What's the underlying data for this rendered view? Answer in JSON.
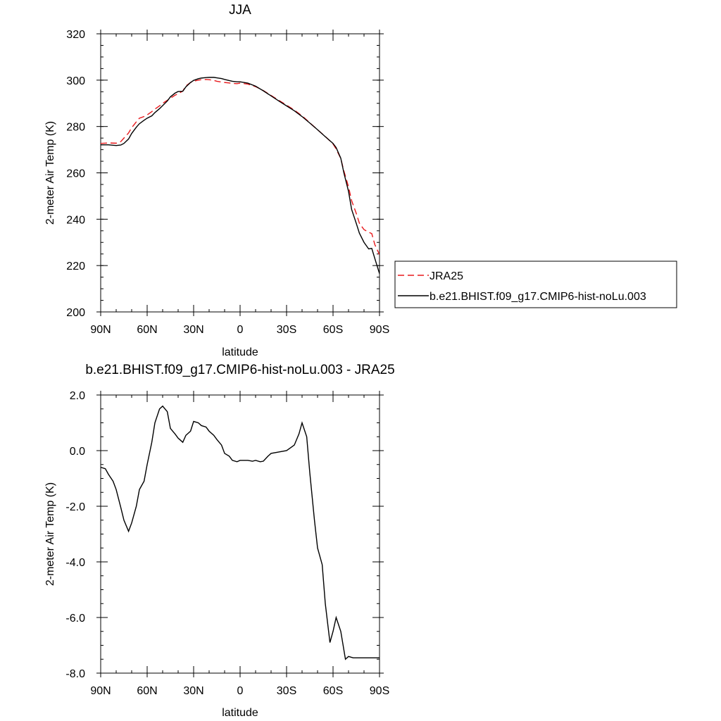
{
  "chart_data": [
    {
      "type": "line",
      "title": "JJA",
      "xlabel": "latitude",
      "ylabel": "2-meter Air Temp (K)",
      "xlim": [
        90,
        -90
      ],
      "ylim": [
        200,
        320
      ],
      "x_ticks": [
        {
          "value": 90,
          "label": "90N"
        },
        {
          "value": 60,
          "label": "60N"
        },
        {
          "value": 30,
          "label": "30N"
        },
        {
          "value": 0,
          "label": "0"
        },
        {
          "value": -30,
          "label": "30S"
        },
        {
          "value": -60,
          "label": "60S"
        },
        {
          "value": -90,
          "label": "90S"
        }
      ],
      "y_ticks": [
        {
          "value": 200,
          "label": "200"
        },
        {
          "value": 220,
          "label": "220"
        },
        {
          "value": 240,
          "label": "240"
        },
        {
          "value": 260,
          "label": "260"
        },
        {
          "value": 280,
          "label": "280"
        },
        {
          "value": 300,
          "label": "300"
        },
        {
          "value": 320,
          "label": "320"
        }
      ],
      "legend": {
        "placement": "right",
        "entries": [
          {
            "label": "JRA25",
            "color": "#e8191c",
            "dash": "dashed"
          },
          {
            "label": "b.e21.BHIST.f09_g17.CMIP6-hist-noLu.003",
            "color": "#000000",
            "dash": "solid"
          }
        ]
      },
      "series": [
        {
          "name": "JRA25",
          "color": "#e8191c",
          "dash": "dashed",
          "x": [
            90,
            85,
            80,
            77,
            75,
            72,
            70,
            67,
            65,
            62,
            60,
            57,
            55,
            52,
            50,
            47,
            45,
            42,
            40,
            37,
            35,
            32,
            30,
            27,
            25,
            22,
            20,
            17,
            15,
            12,
            10,
            7,
            5,
            2,
            0,
            -5,
            -10,
            -15,
            -20,
            -25,
            -30,
            -35,
            -40,
            -45,
            -50,
            -55,
            -60,
            -62,
            -65,
            -67,
            -70,
            -72,
            -75,
            -77,
            -80,
            -83,
            -85,
            -87,
            -90
          ],
          "y": [
            272.7,
            272.9,
            272.8,
            273.5,
            275,
            277.2,
            279.5,
            282,
            283.6,
            284.3,
            285,
            286.4,
            287.5,
            288.9,
            290,
            291.3,
            292.2,
            293.5,
            294.1,
            295.3,
            297.5,
            299,
            299.5,
            300,
            300.2,
            300.3,
            300.2,
            299.9,
            299.5,
            299.2,
            299,
            298.8,
            298.6,
            298.5,
            298.7,
            298.3,
            297.2,
            295.5,
            293.4,
            291.3,
            289.2,
            287.1,
            284.6,
            281.6,
            278.6,
            275.7,
            272.5,
            270.3,
            266.2,
            260.8,
            254,
            248,
            242.5,
            238.3,
            235.5,
            234.4,
            233.8,
            229,
            224.7
          ]
        },
        {
          "name": "b.e21.BHIST.f09_g17.CMIP6-hist-noLu.003",
          "color": "#000000",
          "dash": "solid",
          "x": [
            90,
            85,
            80,
            77,
            75,
            72,
            70,
            67,
            65,
            62,
            60,
            57,
            55,
            52,
            50,
            47,
            45,
            42,
            40,
            37,
            35,
            32,
            30,
            27,
            25,
            22,
            20,
            17,
            15,
            12,
            10,
            7,
            5,
            2,
            0,
            -5,
            -10,
            -15,
            -20,
            -25,
            -30,
            -35,
            -40,
            -45,
            -50,
            -55,
            -60,
            -62,
            -65,
            -67,
            -70,
            -72,
            -75,
            -77,
            -80,
            -83,
            -85,
            -87,
            -90
          ],
          "y": [
            272.1,
            272.1,
            271.8,
            272,
            272.7,
            274.6,
            277,
            279.7,
            281.2,
            282.7,
            283.6,
            284.6,
            286,
            287.7,
            289,
            291,
            292.8,
            294.4,
            295.1,
            295.2,
            297.1,
            299,
            299.9,
            300.6,
            300.9,
            301.1,
            301.2,
            301.2,
            301,
            300.7,
            300.3,
            299.8,
            299.5,
            299.3,
            299.3,
            298.7,
            297.4,
            295.4,
            293.2,
            291,
            288.9,
            286.8,
            284.3,
            281.5,
            278.6,
            275.6,
            272.7,
            270.9,
            266.3,
            260,
            252,
            244.2,
            238.2,
            234,
            230,
            227.2,
            227.4,
            223,
            216.5
          ]
        }
      ]
    },
    {
      "type": "line",
      "title": "b.e21.BHIST.f09_g17.CMIP6-hist-noLu.003 - JRA25",
      "xlabel": "latitude",
      "ylabel": "2-meter Air Temp (K)",
      "xlim": [
        90,
        -90
      ],
      "ylim": [
        -8,
        2
      ],
      "x_ticks": [
        {
          "value": 90,
          "label": "90N"
        },
        {
          "value": 60,
          "label": "60N"
        },
        {
          "value": 30,
          "label": "30N"
        },
        {
          "value": 0,
          "label": "0"
        },
        {
          "value": -30,
          "label": "30S"
        },
        {
          "value": -60,
          "label": "60S"
        },
        {
          "value": -90,
          "label": "90S"
        }
      ],
      "y_ticks": [
        {
          "value": -8,
          "label": "-8.0"
        },
        {
          "value": -6,
          "label": "-6.0"
        },
        {
          "value": -4,
          "label": "-4.0"
        },
        {
          "value": -2,
          "label": "-2.0"
        },
        {
          "value": 0,
          "label": "0.0"
        },
        {
          "value": 2,
          "label": "2.0"
        }
      ],
      "series": [
        {
          "color": "#000000",
          "dash": "solid",
          "x": [
            90,
            87,
            85,
            82,
            80,
            77,
            75,
            72,
            70,
            67,
            65,
            62,
            60,
            57,
            55,
            52,
            50,
            47,
            45,
            42,
            40,
            37,
            35,
            32,
            30,
            27,
            25,
            22,
            20,
            17,
            15,
            12,
            10,
            7,
            5,
            2,
            0,
            -3,
            -5,
            -8,
            -10,
            -13,
            -15,
            -18,
            -20,
            -25,
            -30,
            -35,
            -38,
            -40,
            -43,
            -45,
            -48,
            -50,
            -53,
            -55,
            -58,
            -60,
            -62,
            -65,
            -68,
            -70,
            -73,
            -75,
            -78,
            -80,
            -82,
            -85,
            -87,
            -90
          ],
          "y": [
            -0.6,
            -0.65,
            -0.85,
            -1.1,
            -1.4,
            -2.05,
            -2.5,
            -2.9,
            -2.6,
            -2.0,
            -1.4,
            -1.1,
            -0.5,
            0.3,
            1.0,
            1.5,
            1.6,
            1.4,
            0.8,
            0.6,
            0.45,
            0.3,
            0.55,
            0.7,
            1.05,
            1.0,
            0.9,
            0.85,
            0.7,
            0.55,
            0.4,
            0.2,
            -0.1,
            -0.2,
            -0.35,
            -0.4,
            -0.35,
            -0.35,
            -0.35,
            -0.38,
            -0.35,
            -0.4,
            -0.38,
            -0.2,
            -0.1,
            -0.05,
            0.0,
            0.2,
            0.6,
            1.0,
            0.5,
            -0.8,
            -2.5,
            -3.5,
            -4.1,
            -5.5,
            -6.9,
            -6.5,
            -6.0,
            -6.5,
            -7.5,
            -7.4,
            -7.45,
            -7.45,
            -7.45,
            -7.45,
            -7.45,
            -7.45,
            -7.45,
            -7.45
          ]
        }
      ]
    }
  ]
}
